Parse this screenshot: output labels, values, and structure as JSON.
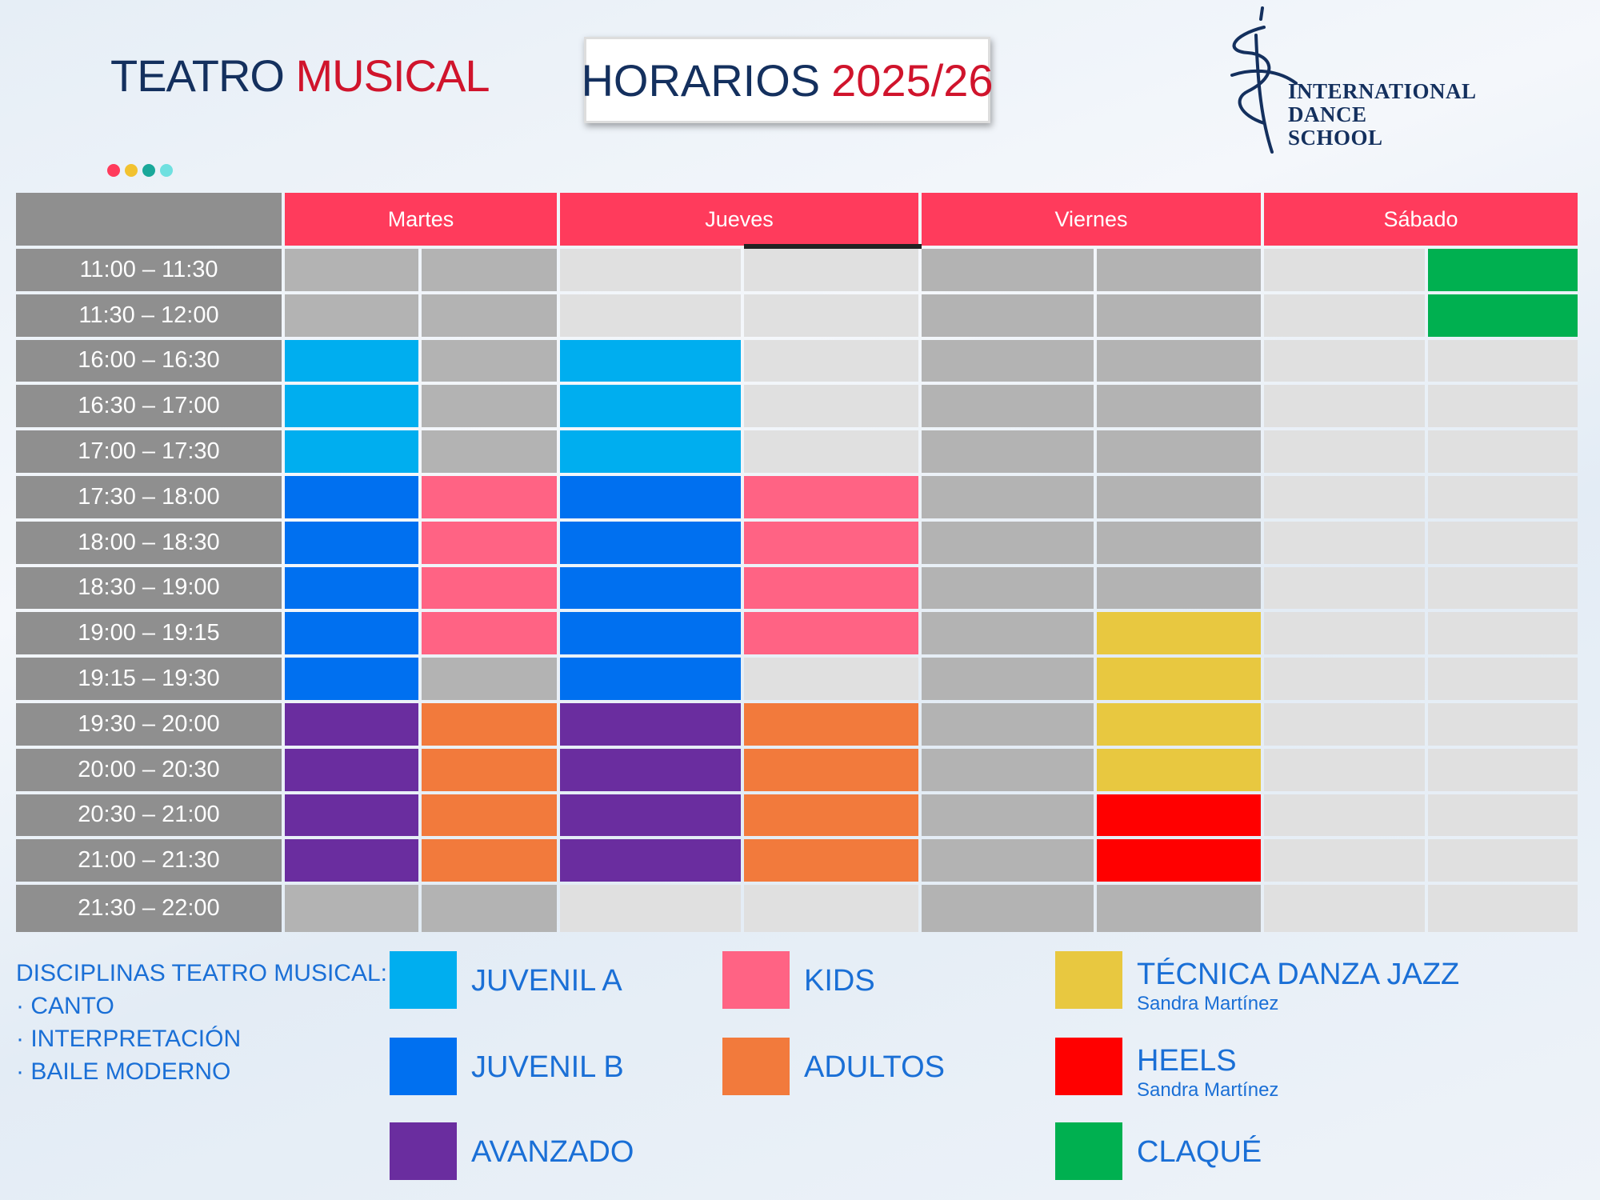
{
  "header": {
    "title": [
      "TEATRO",
      "MUSICAL"
    ],
    "schedule_title": [
      "HORARIOS",
      "2025/26"
    ],
    "logo": [
      "INTERNATIONAL",
      "DANCE",
      "SCHOOL"
    ]
  },
  "table": {
    "days": [
      "Martes",
      "Jueves",
      "Viernes",
      "Sábado"
    ],
    "times": [
      "11:00 – 11:30",
      "11:30 – 12:00",
      "16:00 – 16:30",
      "16:30 – 17:00",
      "17:00 – 17:30",
      "17:30 – 18:00",
      "18:00 – 18:30",
      "18:30 – 19:00",
      "19:00 – 19:15",
      "19:15 – 19:30",
      "19:30 – 20:00",
      "20:00 – 20:30",
      "20:30 – 21:00",
      "21:00 – 21:30",
      "21:30 – 22:00"
    ]
  },
  "disciplines": {
    "heading": "DISCIPLINAS TEATRO MUSICAL:",
    "items": [
      "· CANTO",
      "· INTERPRETACIÓN",
      "· BAILE MODERNO"
    ]
  },
  "legend": [
    {
      "name": "JUVENIL A",
      "color": "#00aeef"
    },
    {
      "name": "JUVENIL B",
      "color": "#0070f0"
    },
    {
      "name": "AVANZADO",
      "color": "#6a2d9f"
    },
    {
      "name": "KIDS",
      "color": "#ff6384"
    },
    {
      "name": "ADULTOS",
      "color": "#f27a3c"
    },
    {
      "name": "TÉCNICA DANZA JAZZ",
      "teacher": "Sandra Martínez",
      "color": "#e8c840"
    },
    {
      "name": "HEELS",
      "teacher": "Sandra Martínez",
      "color": "#ff0000"
    },
    {
      "name": "CLAQUÉ",
      "color": "#00b050"
    }
  ]
}
